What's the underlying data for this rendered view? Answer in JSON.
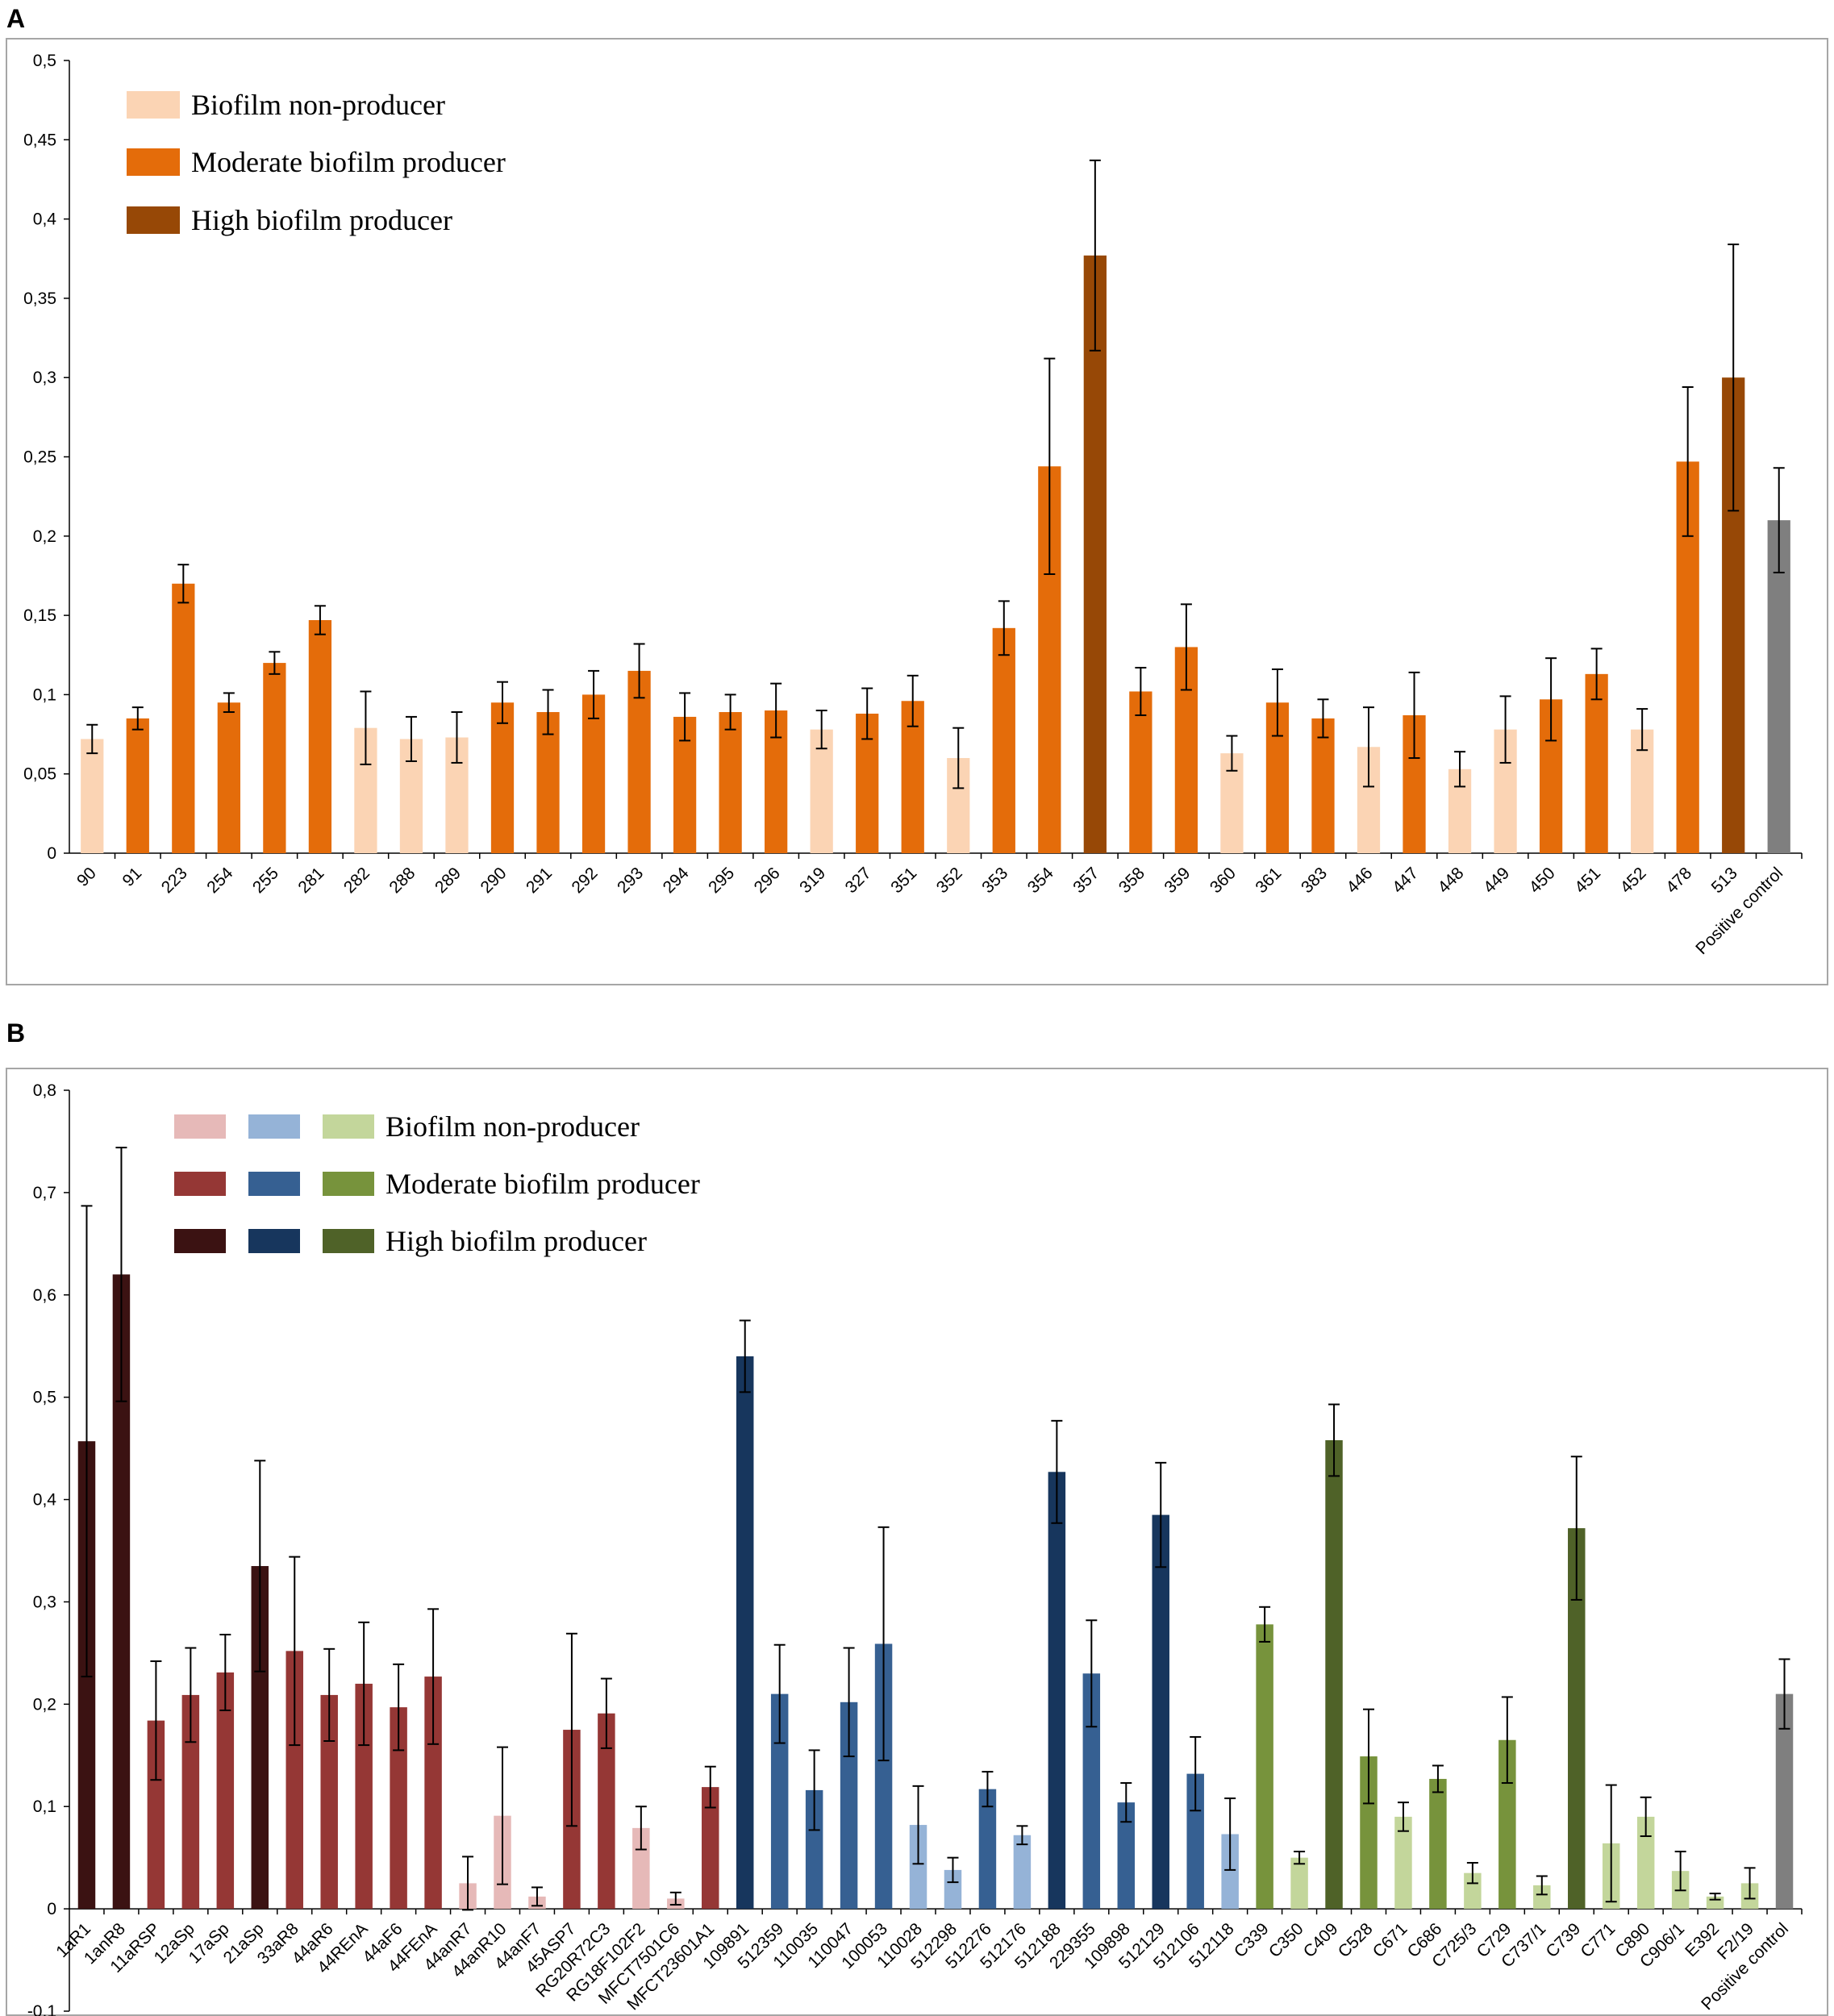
{
  "chart_data": [
    {
      "type": "bar",
      "panel_label": "A",
      "ylim": [
        0,
        0.5
      ],
      "yticks": [
        "0",
        "0,05",
        "0,1",
        "0,15",
        "0,2",
        "0,25",
        "0,3",
        "0,35",
        "0,4",
        "0,45",
        "0,5"
      ],
      "colors": {
        "non": "#fbd4b4",
        "mod": "#e46c0a",
        "high": "#974806",
        "ctrl": "#7f7f7f"
      },
      "legend": [
        {
          "label": "Biofilm non-producer",
          "colors": [
            "#fbd4b4"
          ]
        },
        {
          "label": "Moderate biofilm producer",
          "colors": [
            "#e46c0a"
          ]
        },
        {
          "label": "High biofilm producer",
          "colors": [
            "#974806"
          ]
        }
      ],
      "categories": [
        "90",
        "91",
        "223",
        "254",
        "255",
        "281",
        "282",
        "288",
        "289",
        "290",
        "291",
        "292",
        "293",
        "294",
        "295",
        "296",
        "319",
        "327",
        "351",
        "352",
        "353",
        "354",
        "357",
        "358",
        "359",
        "360",
        "361",
        "383",
        "446",
        "447",
        "448",
        "449",
        "450",
        "451",
        "452",
        "478",
        "513",
        "Positive control"
      ],
      "values": [
        0.072,
        0.085,
        0.17,
        0.095,
        0.12,
        0.147,
        0.079,
        0.072,
        0.073,
        0.095,
        0.089,
        0.1,
        0.115,
        0.086,
        0.089,
        0.09,
        0.078,
        0.088,
        0.096,
        0.06,
        0.142,
        0.244,
        0.377,
        0.102,
        0.13,
        0.063,
        0.095,
        0.085,
        0.067,
        0.087,
        0.053,
        0.078,
        0.097,
        0.113,
        0.078,
        0.247,
        0.3,
        0.21
      ],
      "errors": [
        0.009,
        0.007,
        0.012,
        0.006,
        0.007,
        0.009,
        0.023,
        0.014,
        0.016,
        0.013,
        0.014,
        0.015,
        0.017,
        0.015,
        0.011,
        0.017,
        0.012,
        0.016,
        0.016,
        0.019,
        0.017,
        0.068,
        0.06,
        0.015,
        0.027,
        0.011,
        0.021,
        0.012,
        0.025,
        0.027,
        0.011,
        0.021,
        0.026,
        0.016,
        0.013,
        0.047,
        0.084,
        0.033
      ],
      "groups": [
        "non",
        "mod",
        "mod",
        "mod",
        "mod",
        "mod",
        "non",
        "non",
        "non",
        "mod",
        "mod",
        "mod",
        "mod",
        "mod",
        "mod",
        "mod",
        "non",
        "mod",
        "mod",
        "non",
        "mod",
        "mod",
        "high",
        "mod",
        "mod",
        "non",
        "mod",
        "mod",
        "non",
        "mod",
        "non",
        "non",
        "mod",
        "mod",
        "non",
        "mod",
        "high",
        "ctrl"
      ]
    },
    {
      "type": "bar",
      "panel_label": "B",
      "ylim": [
        -0.1,
        0.8
      ],
      "yticks": [
        "-0,1",
        "0",
        "0,1",
        "0,2",
        "0,3",
        "0,4",
        "0,5",
        "0,6",
        "0,7",
        "0,8"
      ],
      "colors": {
        "rn": "#e6b9b8",
        "rm": "#953735",
        "rh": "#3b1212",
        "bn": "#95b3d7",
        "bm": "#366092",
        "bh": "#17365d",
        "gn": "#c3d69b",
        "gm": "#77933c",
        "gh": "#4f6228",
        "ctrl": "#7f7f7f"
      },
      "legend": [
        {
          "label": "Biofilm non-producer",
          "colors": [
            "#e6b9b8",
            "#95b3d7",
            "#c3d69b"
          ]
        },
        {
          "label": "Moderate biofilm producer",
          "colors": [
            "#953735",
            "#366092",
            "#77933c"
          ]
        },
        {
          "label": "High biofilm producer",
          "colors": [
            "#3b1212",
            "#17365d",
            "#4f6228"
          ]
        }
      ],
      "categories": [
        "1aR1",
        "1anR8",
        "11aRSP",
        "12aSp",
        "17aSp",
        "21aSp",
        "33aR8",
        "44aR6",
        "44REnA",
        "44aF6",
        "44FEnA",
        "44anR7",
        "44anR10",
        "44anF7",
        "45ASP7",
        "RG20R72C3",
        "RG18F102F2",
        "MFCT7501C6",
        "MFCT23601A1",
        "109891",
        "512359",
        "110035",
        "110047",
        "100053",
        "110028",
        "512298",
        "512276",
        "512176",
        "512188",
        "229355",
        "109898",
        "512129",
        "512106",
        "512118",
        "C339",
        "C350",
        "C409",
        "C528",
        "C671",
        "C686",
        "C725/3",
        "C729",
        "C737/1",
        "C739",
        "C771",
        "C890",
        "C906/1",
        "E392",
        "F2/19",
        "Positive control"
      ],
      "values": [
        0.457,
        0.62,
        0.184,
        0.209,
        0.231,
        0.335,
        0.252,
        0.209,
        0.22,
        0.197,
        0.227,
        0.025,
        0.091,
        0.012,
        0.175,
        0.191,
        0.079,
        0.01,
        0.119,
        0.54,
        0.21,
        0.116,
        0.202,
        0.259,
        0.082,
        0.038,
        0.117,
        0.072,
        0.427,
        0.23,
        0.104,
        0.385,
        0.132,
        0.073,
        0.278,
        0.05,
        0.458,
        0.149,
        0.09,
        0.127,
        0.035,
        0.165,
        0.023,
        0.372,
        0.064,
        0.09,
        0.037,
        0.012,
        0.025,
        0.21
      ],
      "errors": [
        0.23,
        0.124,
        0.058,
        0.046,
        0.037,
        0.103,
        0.092,
        0.045,
        0.06,
        0.042,
        0.066,
        0.026,
        0.067,
        0.009,
        0.094,
        0.034,
        0.021,
        0.006,
        0.02,
        0.035,
        0.048,
        0.039,
        0.053,
        0.114,
        0.038,
        0.012,
        0.017,
        0.009,
        0.05,
        0.052,
        0.019,
        0.051,
        0.036,
        0.035,
        0.017,
        0.006,
        0.035,
        0.046,
        0.014,
        0.013,
        0.01,
        0.042,
        0.009,
        0.07,
        0.057,
        0.019,
        0.019,
        0.003,
        0.015,
        0.034
      ],
      "groups": [
        "rh",
        "rh",
        "rm",
        "rm",
        "rm",
        "rh",
        "rm",
        "rm",
        "rm",
        "rm",
        "rm",
        "rn",
        "rn",
        "rn",
        "rm",
        "rm",
        "rn",
        "rn",
        "rm",
        "bh",
        "bm",
        "bm",
        "bm",
        "bm",
        "bn",
        "bn",
        "bm",
        "bn",
        "bh",
        "bm",
        "bm",
        "bh",
        "bm",
        "bn",
        "gm",
        "gn",
        "gh",
        "gm",
        "gn",
        "gm",
        "gn",
        "gm",
        "gn",
        "gh",
        "gn",
        "gn",
        "gn",
        "gn",
        "gn",
        "ctrl"
      ]
    }
  ]
}
